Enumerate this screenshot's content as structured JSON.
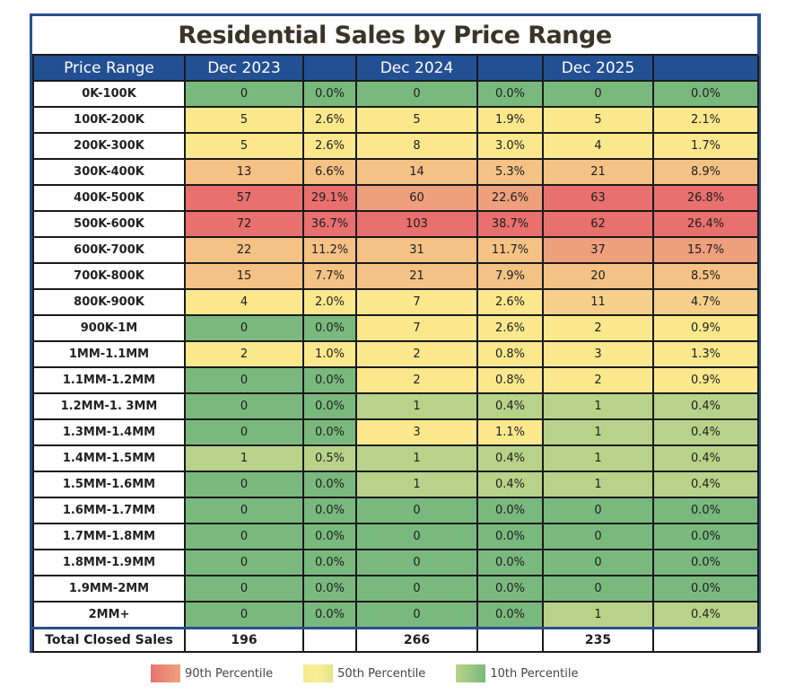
{
  "chart_data": {
    "type": "table",
    "title": "Residential Sales by Price Range",
    "columns": [
      "Price Range",
      "Dec 2023",
      "",
      "Dec 2024",
      "",
      "Dec 2025",
      ""
    ],
    "periods": [
      "Dec 2023",
      "Dec 2024",
      "Dec 2025"
    ],
    "rows": [
      {
        "range": "0K-100K",
        "values": [
          0,
          0,
          0
        ],
        "pct": [
          "0.0%",
          "0.0%",
          "0.0%"
        ]
      },
      {
        "range": "100K-200K",
        "values": [
          5,
          5,
          5
        ],
        "pct": [
          "2.6%",
          "1.9%",
          "2.1%"
        ]
      },
      {
        "range": "200K-300K",
        "values": [
          5,
          8,
          4
        ],
        "pct": [
          "2.6%",
          "3.0%",
          "1.7%"
        ]
      },
      {
        "range": "300K-400K",
        "values": [
          13,
          14,
          21
        ],
        "pct": [
          "6.6%",
          "5.3%",
          "8.9%"
        ]
      },
      {
        "range": "400K-500K",
        "values": [
          57,
          60,
          63
        ],
        "pct": [
          "29.1%",
          "22.6%",
          "26.8%"
        ]
      },
      {
        "range": "500K-600K",
        "values": [
          72,
          103,
          62
        ],
        "pct": [
          "36.7%",
          "38.7%",
          "26.4%"
        ]
      },
      {
        "range": "600K-700K",
        "values": [
          22,
          31,
          37
        ],
        "pct": [
          "11.2%",
          "11.7%",
          "15.7%"
        ]
      },
      {
        "range": "700K-800K",
        "values": [
          15,
          21,
          20
        ],
        "pct": [
          "7.7%",
          "7.9%",
          "8.5%"
        ]
      },
      {
        "range": "800K-900K",
        "values": [
          4,
          7,
          11
        ],
        "pct": [
          "2.0%",
          "2.6%",
          "4.7%"
        ]
      },
      {
        "range": "900K-1M",
        "values": [
          0,
          7,
          2
        ],
        "pct": [
          "0.0%",
          "2.6%",
          "0.9%"
        ]
      },
      {
        "range": "1MM-1.1MM",
        "values": [
          2,
          2,
          3
        ],
        "pct": [
          "1.0%",
          "0.8%",
          "1.3%"
        ]
      },
      {
        "range": "1.1MM-1.2MM",
        "values": [
          0,
          2,
          2
        ],
        "pct": [
          "0.0%",
          "0.8%",
          "0.9%"
        ]
      },
      {
        "range": "1.2MM-1. 3MM",
        "values": [
          0,
          1,
          1
        ],
        "pct": [
          "0.0%",
          "0.4%",
          "0.4%"
        ]
      },
      {
        "range": "1.3MM-1.4MM",
        "values": [
          0,
          3,
          1
        ],
        "pct": [
          "0.0%",
          "1.1%",
          "0.4%"
        ]
      },
      {
        "range": "1.4MM-1.5MM",
        "values": [
          1,
          1,
          1
        ],
        "pct": [
          "0.5%",
          "0.4%",
          "0.4%"
        ]
      },
      {
        "range": "1.5MM-1.6MM",
        "values": [
          0,
          1,
          1
        ],
        "pct": [
          "0.0%",
          "0.4%",
          "0.4%"
        ]
      },
      {
        "range": "1.6MM-1.7MM",
        "values": [
          0,
          0,
          0
        ],
        "pct": [
          "0.0%",
          "0.0%",
          "0.0%"
        ]
      },
      {
        "range": "1.7MM-1.8MM",
        "values": [
          0,
          0,
          0
        ],
        "pct": [
          "0.0%",
          "0.0%",
          "0.0%"
        ]
      },
      {
        "range": "1.8MM-1.9MM",
        "values": [
          0,
          0,
          0
        ],
        "pct": [
          "0.0%",
          "0.0%",
          "0.0%"
        ]
      },
      {
        "range": "1.9MM-2MM",
        "values": [
          0,
          0,
          0
        ],
        "pct": [
          "0.0%",
          "0.0%",
          "0.0%"
        ]
      },
      {
        "range": "2MM+",
        "values": [
          0,
          0,
          1
        ],
        "pct": [
          "0.0%",
          "0.0%",
          "0.4%"
        ]
      }
    ],
    "total": {
      "label": "Total Closed Sales",
      "values": [
        196,
        266,
        235
      ]
    },
    "legend": [
      {
        "label": "90th Percentile",
        "color": "#e8736f"
      },
      {
        "label": "50th Percentile",
        "color": "#fbe88d"
      },
      {
        "label": "10th Percentile",
        "color": "#7ab97e"
      }
    ]
  },
  "colors": {
    "header_bg": "#234f93",
    "frame_border": "#2a4f8f",
    "scale": {
      "zero": "#7ab97e",
      "low": "#b8d389",
      "mid": "#fbe88d",
      "midhigh": "#f6d08a",
      "high": "#f4c285",
      "higher": "#ee9f7c",
      "top": "#e8706e"
    }
  }
}
